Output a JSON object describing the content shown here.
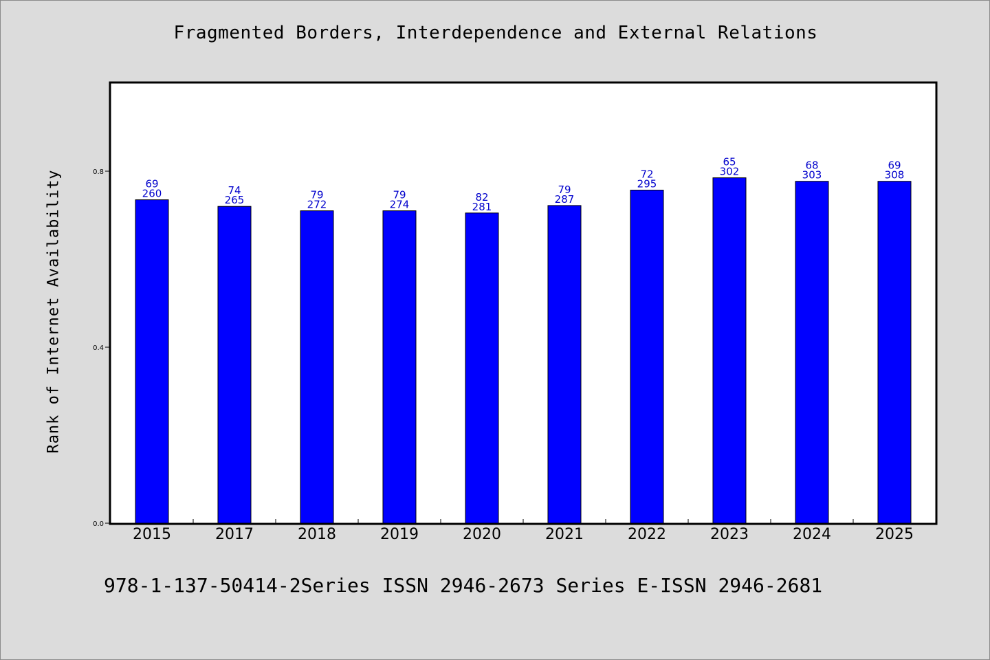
{
  "chart_data": {
    "type": "bar",
    "title": "Fragmented Borders, Interdependence and External Relations",
    "xlabel": "",
    "ylabel": "Rank of Internet Availability",
    "categories": [
      "2015",
      "2017",
      "2018",
      "2019",
      "2020",
      "2021",
      "2022",
      "2023",
      "2024",
      "2025"
    ],
    "series": [
      {
        "values": [
          0.735,
          0.72,
          0.71,
          0.71,
          0.705,
          0.722,
          0.757,
          0.785,
          0.777,
          0.777
        ]
      }
    ],
    "data_labels": [
      [
        "69",
        "260"
      ],
      [
        "74",
        "265"
      ],
      [
        "79",
        "272"
      ],
      [
        "79",
        "274"
      ],
      [
        "82",
        "281"
      ],
      [
        "79",
        "287"
      ],
      [
        "72",
        "295"
      ],
      [
        "65",
        "302"
      ],
      [
        "68",
        "303"
      ],
      [
        "69",
        "308"
      ]
    ],
    "ylim": [
      0.0,
      1.0
    ],
    "yticks": [
      0.0,
      0.4,
      0.8
    ],
    "ytick_labels": [
      "0.0",
      "0.4",
      "0.8"
    ],
    "grid": false,
    "legend": "none",
    "colors": {
      "bar": "#0000ff",
      "label": "#0000cc",
      "background": "#dcdcdc",
      "plot_background": "#ffffff"
    }
  },
  "footer": {
    "text": "978-1-137-50414-2Series ISSN 2946-2673 Series E-ISSN 2946-2681"
  }
}
